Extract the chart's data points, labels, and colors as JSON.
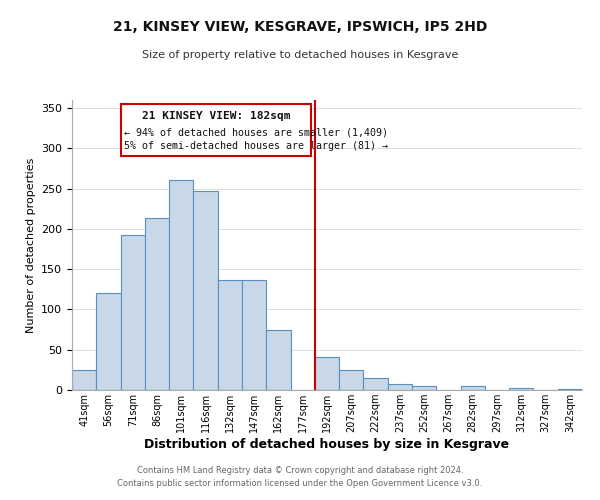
{
  "title": "21, KINSEY VIEW, KESGRAVE, IPSWICH, IP5 2HD",
  "subtitle": "Size of property relative to detached houses in Kesgrave",
  "xlabel": "Distribution of detached houses by size in Kesgrave",
  "ylabel": "Number of detached properties",
  "bar_labels": [
    "41sqm",
    "56sqm",
    "71sqm",
    "86sqm",
    "101sqm",
    "116sqm",
    "132sqm",
    "147sqm",
    "162sqm",
    "177sqm",
    "192sqm",
    "207sqm",
    "222sqm",
    "237sqm",
    "252sqm",
    "267sqm",
    "282sqm",
    "297sqm",
    "312sqm",
    "327sqm",
    "342sqm"
  ],
  "bar_values": [
    25,
    120,
    193,
    214,
    261,
    247,
    137,
    136,
    75,
    0,
    41,
    25,
    15,
    7,
    5,
    0,
    5,
    0,
    2,
    0,
    1
  ],
  "bar_color": "#c8d8e8",
  "bar_edge_color": "#5a8fc0",
  "vline_x": 9.5,
  "vline_color": "#cc0000",
  "annotation_title": "21 KINSEY VIEW: 182sqm",
  "annotation_line1": "← 94% of detached houses are smaller (1,409)",
  "annotation_line2": "5% of semi-detached houses are larger (81) →",
  "annotation_box_color": "#ffffff",
  "annotation_box_edge": "#cc0000",
  "ylim": [
    0,
    360
  ],
  "yticks": [
    0,
    50,
    100,
    150,
    200,
    250,
    300,
    350
  ],
  "footer1": "Contains HM Land Registry data © Crown copyright and database right 2024.",
  "footer2": "Contains public sector information licensed under the Open Government Licence v3.0."
}
